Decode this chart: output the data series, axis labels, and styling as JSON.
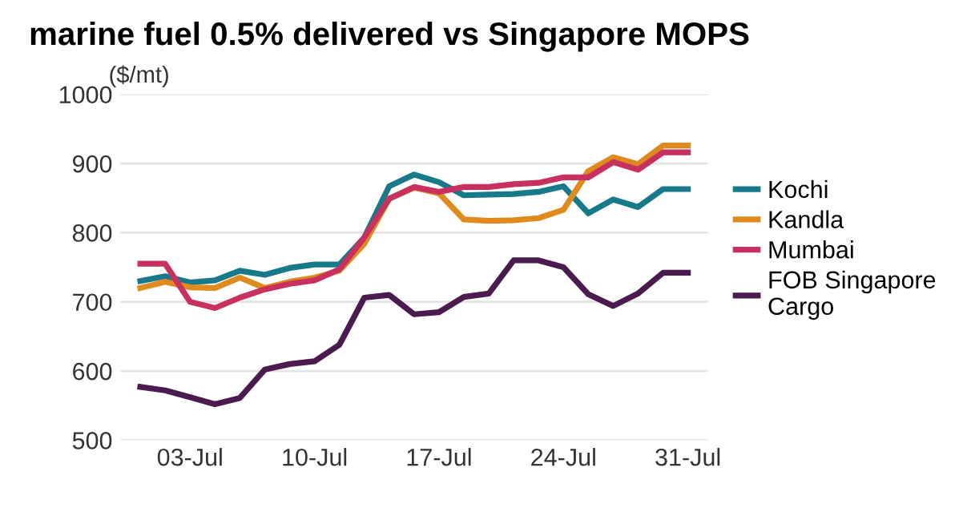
{
  "chart_data": {
    "type": "line",
    "title": "marine fuel 0.5% delivered vs Singapore MOPS",
    "ylabel": "($/mt)",
    "categories": [
      null,
      null,
      "03-Jul",
      null,
      null,
      null,
      null,
      "10-Jul",
      null,
      null,
      null,
      null,
      "17-Jul",
      null,
      null,
      null,
      null,
      "24-Jul",
      null,
      null,
      null,
      null,
      "31-Jul"
    ],
    "series": [
      {
        "name": "Kochi",
        "color": "#17798a",
        "values": [
          730,
          737,
          728,
          731,
          745,
          739,
          749,
          754,
          754,
          793,
          867,
          884,
          873,
          854,
          855,
          856,
          859,
          867,
          828,
          848,
          837,
          863,
          863
        ]
      },
      {
        "name": "Kandla",
        "color": "#e08a1e",
        "values": [
          720,
          729,
          721,
          720,
          735,
          720,
          729,
          735,
          745,
          784,
          849,
          865,
          857,
          819,
          817,
          818,
          821,
          833,
          889,
          909,
          899,
          926,
          926
        ]
      },
      {
        "name": "Mumbai",
        "color": "#c8305f",
        "values": [
          755,
          755,
          700,
          691,
          706,
          718,
          726,
          731,
          747,
          793,
          849,
          866,
          859,
          866,
          866,
          870,
          872,
          880,
          880,
          902,
          891,
          916,
          916
        ]
      },
      {
        "name": "FOB Singapore\nCargo",
        "color": "#4b1a4e",
        "values": [
          577,
          572,
          562,
          552,
          561,
          602,
          610,
          614,
          638,
          706,
          710,
          682,
          685,
          707,
          712,
          760,
          760,
          750,
          711,
          694,
          712,
          742,
          742
        ]
      }
    ],
    "ylim": [
      500,
      1000
    ],
    "yticks": [
      500,
      600,
      700,
      800,
      900,
      1000
    ],
    "grid": "y",
    "legend": "right",
    "marker": "none",
    "line_style": "solid"
  }
}
